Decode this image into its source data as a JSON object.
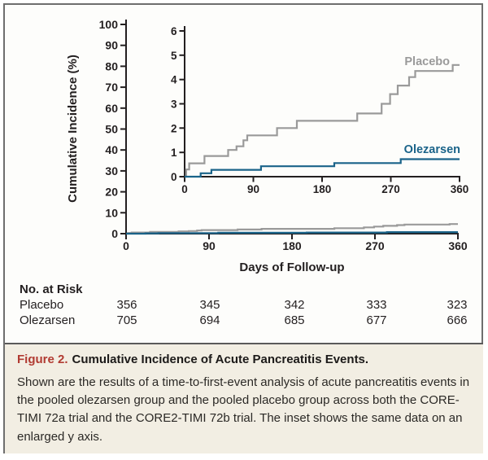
{
  "chart_data": {
    "type": "line",
    "subtype": "step-cumulative-incidence",
    "title": "",
    "xlabel": "Days of Follow-up",
    "ylabel": "Cumulative Incidence (%)",
    "legend_position": "labels-at-line-ends-in-inset",
    "grid": false,
    "main_axis": {
      "xlim": [
        0,
        360
      ],
      "ylim": [
        0,
        100
      ],
      "xticks": [
        0,
        90,
        180,
        270,
        360
      ],
      "yticks": [
        0,
        10,
        20,
        30,
        40,
        50,
        60,
        70,
        80,
        90,
        100
      ]
    },
    "inset_axis": {
      "xlim": [
        0,
        360
      ],
      "ylim": [
        0,
        6
      ],
      "xticks": [
        0,
        90,
        180,
        270,
        360
      ],
      "yticks": [
        0,
        1,
        2,
        3,
        4,
        5,
        6
      ]
    },
    "series": [
      {
        "name": "Placebo",
        "color": "#9a9a9a",
        "points": [
          [
            0,
            0
          ],
          [
            2,
            0.3
          ],
          [
            6,
            0.55
          ],
          [
            26,
            0.85
          ],
          [
            57,
            1.1
          ],
          [
            68,
            1.25
          ],
          [
            77,
            1.5
          ],
          [
            82,
            1.7
          ],
          [
            121,
            2.0
          ],
          [
            147,
            2.3
          ],
          [
            226,
            2.6
          ],
          [
            258,
            3.0
          ],
          [
            269,
            3.4
          ],
          [
            279,
            3.75
          ],
          [
            294,
            4.1
          ],
          [
            302,
            4.35
          ],
          [
            351,
            4.6
          ],
          [
            360,
            4.6
          ]
        ]
      },
      {
        "name": "Olezarsen",
        "color": "#1a6389",
        "points": [
          [
            0,
            0
          ],
          [
            21,
            0.14
          ],
          [
            35,
            0.28
          ],
          [
            100,
            0.43
          ],
          [
            196,
            0.56
          ],
          [
            283,
            0.72
          ],
          [
            360,
            0.72
          ]
        ]
      }
    ]
  },
  "at_risk": {
    "title": "No. at Risk",
    "rows": [
      {
        "label": "Placebo",
        "values": [
          "356",
          "345",
          "342",
          "333",
          "323"
        ]
      },
      {
        "label": "Olezarsen",
        "values": [
          "705",
          "694",
          "685",
          "677",
          "666"
        ]
      }
    ]
  },
  "caption": {
    "label": "Figure 2.",
    "title": "Cumulative Incidence of Acute Pancreatitis Events.",
    "body": "Shown are the results of a time-to-first-event analysis of acute pancreatitis events in the pooled olezarsen group and the pooled placebo group across both the CORE-TIMI 72a trial and the CORE2-TIMI 72b trial. The inset shows the same data on an enlarged y axis."
  },
  "colors": {
    "ink": "#231f20",
    "placebo_line": "#9a9a9a",
    "olezarsen_line": "#1a6389",
    "figure_label_red": "#b13b32",
    "caption_background": "#f2eee3",
    "frame_border": "#6e6e6e"
  }
}
